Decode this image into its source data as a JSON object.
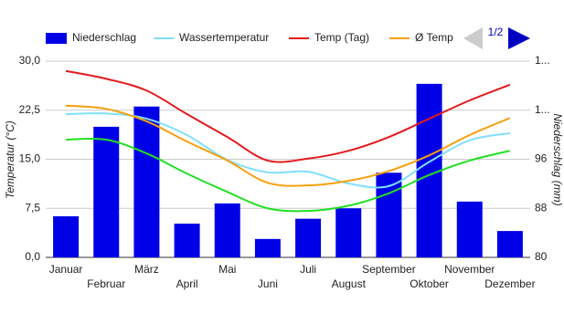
{
  "chart_data": {
    "type": "combo",
    "categories": [
      "Januar",
      "Februar",
      "März",
      "April",
      "Mai",
      "Juni",
      "Juli",
      "August",
      "September",
      "Oktober",
      "November",
      "Dezember"
    ],
    "series": [
      {
        "name": "Niederschlag",
        "type": "bar",
        "axis": "y2",
        "color": "#0000e6",
        "values": [
          86.7,
          101.3,
          104.6,
          85.5,
          88.8,
          83.0,
          86.3,
          88.0,
          93.8,
          108.3,
          89.1,
          84.3
        ]
      },
      {
        "name": "Wassertemperatur",
        "type": "line",
        "color": "#7fdfff",
        "values": [
          21.9,
          22.0,
          21.2,
          18.7,
          14.9,
          13.0,
          13.1,
          11.3,
          10.9,
          14.6,
          17.9,
          19.0
        ]
      },
      {
        "name": "Temp (Tag)",
        "type": "line",
        "color": "#e31a1c",
        "values": [
          28.5,
          27.3,
          25.5,
          21.9,
          18.4,
          14.8,
          15.1,
          16.3,
          18.4,
          21.2,
          24.0,
          26.4
        ]
      },
      {
        "name": "Ø Temp",
        "type": "line",
        "color": "#f5a00f",
        "values": [
          23.2,
          22.7,
          20.8,
          17.7,
          14.8,
          11.4,
          11.0,
          11.7,
          13.2,
          15.6,
          18.7,
          21.3
        ]
      },
      {
        "type": "line",
        "color": "#22e022",
        "values": [
          18.0,
          18.0,
          15.9,
          12.8,
          10.0,
          7.5,
          7.1,
          7.9,
          9.8,
          12.6,
          14.8,
          16.3
        ]
      }
    ],
    "y_label": "Temperatur (°C)",
    "y2_label": "Niederschlag (mm)",
    "ylim": [
      0,
      30
    ],
    "yticks": [
      {
        "value": 0,
        "label": "0,0"
      },
      {
        "value": 7.5,
        "label": "7,5"
      },
      {
        "value": 15,
        "label": "15,0"
      },
      {
        "value": 22.5,
        "label": "22,5"
      },
      {
        "value": 30,
        "label": "30,0"
      }
    ],
    "y2lim": [
      80,
      112
    ],
    "y2ticks": [
      80,
      88,
      96,
      {
        "value": 104,
        "label": "1..."
      },
      {
        "value": 112,
        "label": "1..."
      }
    ],
    "grid": true,
    "legend": "top",
    "legend_page": "1/2"
  }
}
